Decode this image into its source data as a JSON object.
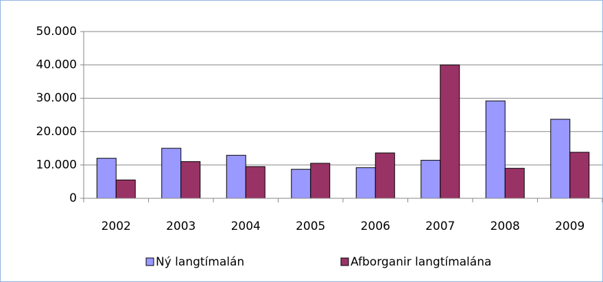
{
  "chart_data": {
    "type": "bar",
    "categories": [
      "2002",
      "2003",
      "2004",
      "2005",
      "2006",
      "2007",
      "2008",
      "2009"
    ],
    "series": [
      {
        "name": "Ný langtímalán",
        "color": "#9999ff",
        "values": [
          12000,
          15000,
          12900,
          8700,
          9200,
          11400,
          29200,
          23700
        ]
      },
      {
        "name": "Afborganir langtímalána",
        "color": "#993366",
        "values": [
          5500,
          11000,
          9500,
          10500,
          13600,
          40000,
          9000,
          13800
        ]
      }
    ],
    "ylim": [
      0,
      50000
    ],
    "yticks": [
      0,
      {
        "value": 10000,
        "label": "10.000"
      },
      {
        "value": 20000,
        "label": "20.000"
      },
      {
        "value": 30000,
        "label": "30.000"
      },
      {
        "value": 40000,
        "label": "40.000"
      },
      {
        "value": 50000,
        "label": "50.000"
      }
    ],
    "grid": true,
    "legend": "bottom"
  }
}
